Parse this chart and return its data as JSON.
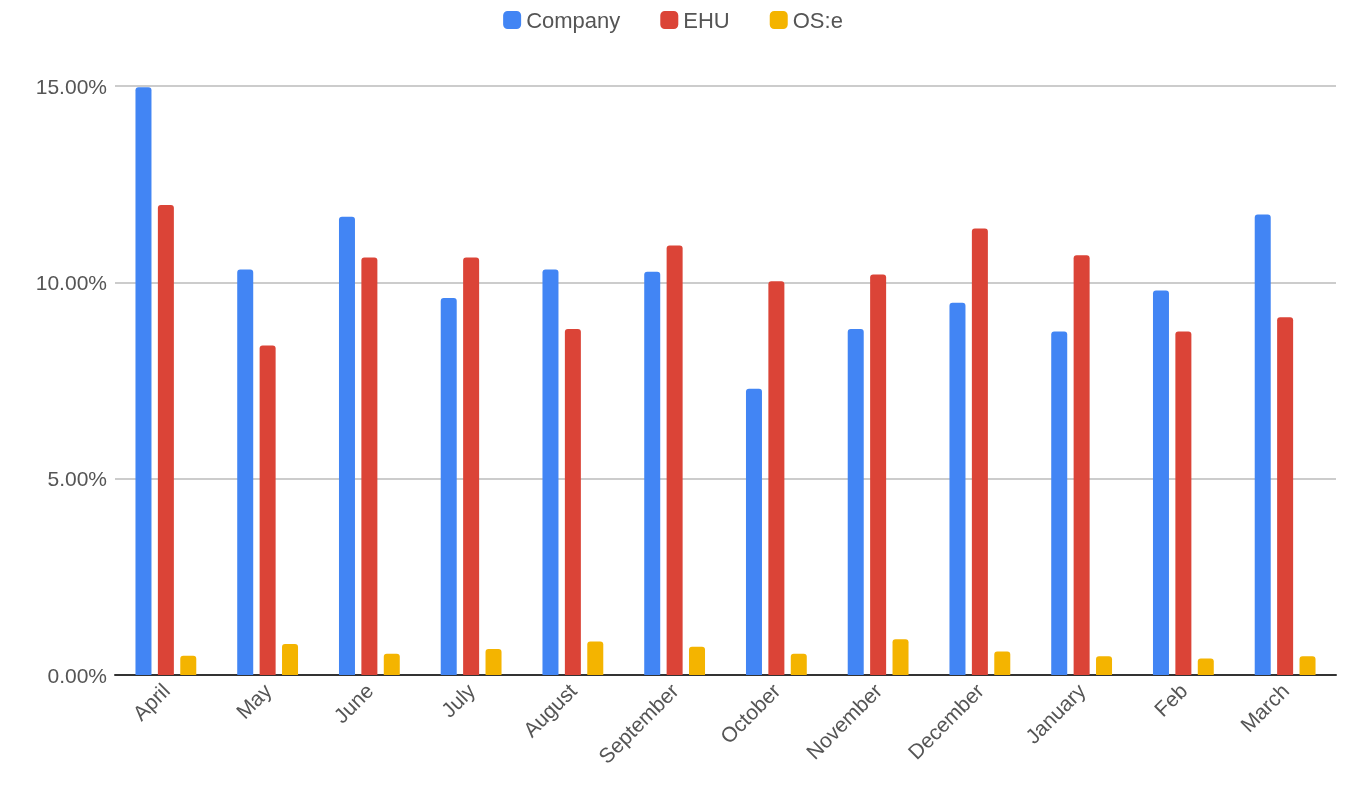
{
  "chart_data": {
    "type": "bar",
    "categories": [
      "April",
      "May",
      "June",
      "July",
      "August",
      "September",
      "October",
      "November",
      "December",
      "January",
      "Feb",
      "March"
    ],
    "series": [
      {
        "name": "Company",
        "color": "#4285f4",
        "values": [
          14.97,
          10.33,
          11.67,
          9.6,
          10.33,
          10.27,
          7.29,
          8.81,
          9.48,
          8.75,
          9.79,
          11.73
        ]
      },
      {
        "name": "EHU",
        "color": "#db4437",
        "values": [
          11.97,
          8.39,
          10.63,
          10.63,
          8.81,
          10.94,
          10.03,
          10.2,
          11.37,
          10.69,
          8.75,
          9.11
        ]
      },
      {
        "name": "OS:e",
        "color": "#f4b400",
        "values": [
          0.49,
          0.79,
          0.54,
          0.66,
          0.85,
          0.72,
          0.54,
          0.91,
          0.6,
          0.48,
          0.42,
          0.48
        ]
      }
    ],
    "ylim": [
      0,
      15
    ],
    "yticks": [
      {
        "value": 0,
        "label": "0.00%"
      },
      {
        "value": 5,
        "label": "5.00%"
      },
      {
        "value": 10,
        "label": "10.00%"
      },
      {
        "value": 15,
        "label": "15.00%"
      }
    ],
    "grid": "y",
    "legend": "top"
  }
}
